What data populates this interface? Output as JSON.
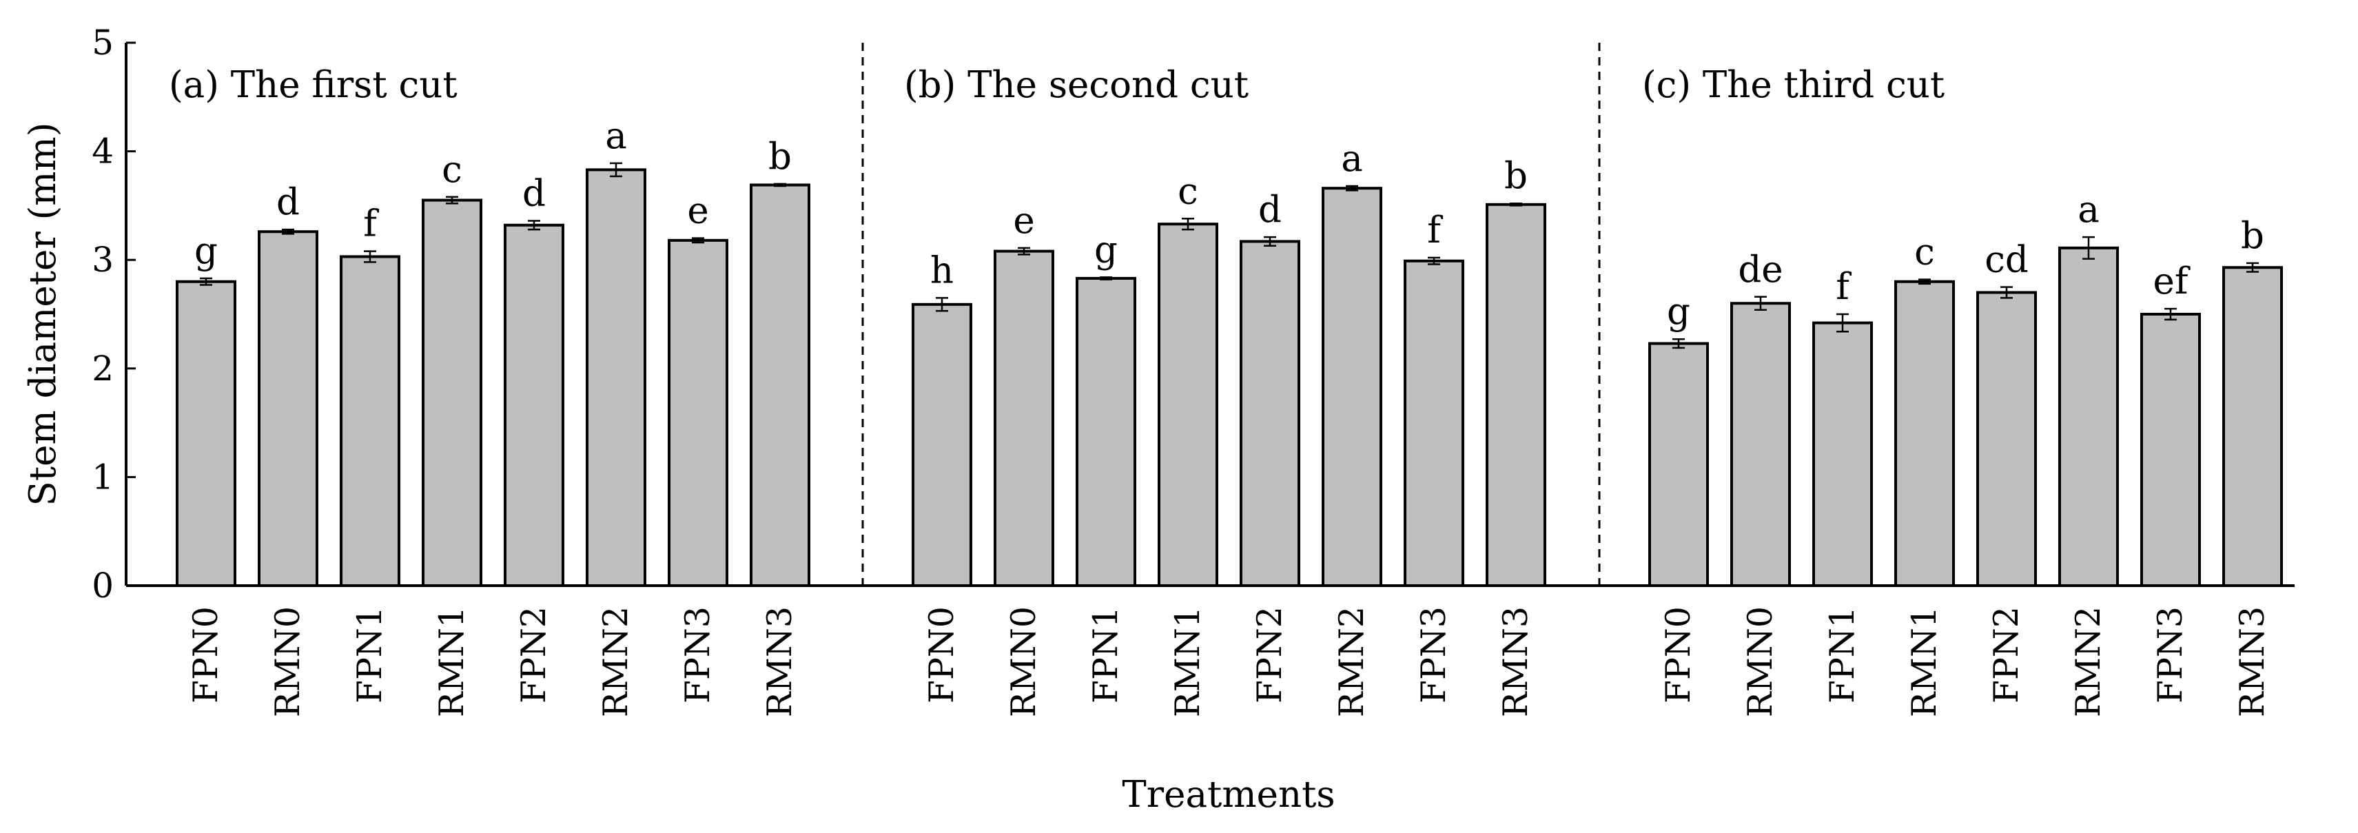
{
  "chart_data": {
    "type": "bar",
    "ylabel": "Stem diameter (mm)",
    "xlabel": "Treatments",
    "ylim": [
      0,
      5
    ],
    "yticks": [
      "0",
      "1",
      "2",
      "3",
      "4",
      "5"
    ],
    "categories": [
      "FPN0",
      "RMN0",
      "FPN1",
      "RMN1",
      "FPN2",
      "RMN2",
      "FPN3",
      "RMN3"
    ],
    "bar_color": "#bfbfbf",
    "panels": [
      {
        "title": "(a) The first cut",
        "values": [
          2.8,
          3.26,
          3.03,
          3.55,
          3.32,
          3.83,
          3.18,
          3.69
        ],
        "errors": [
          0.03,
          0.02,
          0.05,
          0.03,
          0.04,
          0.06,
          0.02,
          0.01
        ],
        "letters": [
          "g",
          "d",
          "f",
          "c",
          "d",
          "a",
          "e",
          "b"
        ]
      },
      {
        "title": "(b) The second cut",
        "values": [
          2.59,
          3.08,
          2.83,
          3.33,
          3.17,
          3.66,
          2.99,
          3.51
        ],
        "errors": [
          0.06,
          0.03,
          0.01,
          0.05,
          0.04,
          0.02,
          0.03,
          0.01
        ],
        "letters": [
          "h",
          "e",
          "g",
          "c",
          "d",
          "a",
          "f",
          "b"
        ]
      },
      {
        "title": "(c) The third cut",
        "values": [
          2.23,
          2.6,
          2.42,
          2.8,
          2.7,
          3.11,
          2.5,
          2.93
        ],
        "errors": [
          0.04,
          0.06,
          0.08,
          0.02,
          0.05,
          0.1,
          0.05,
          0.04
        ],
        "letters": [
          "g",
          "de",
          "f",
          "c",
          "cd",
          "a",
          "ef",
          "b"
        ]
      }
    ]
  }
}
